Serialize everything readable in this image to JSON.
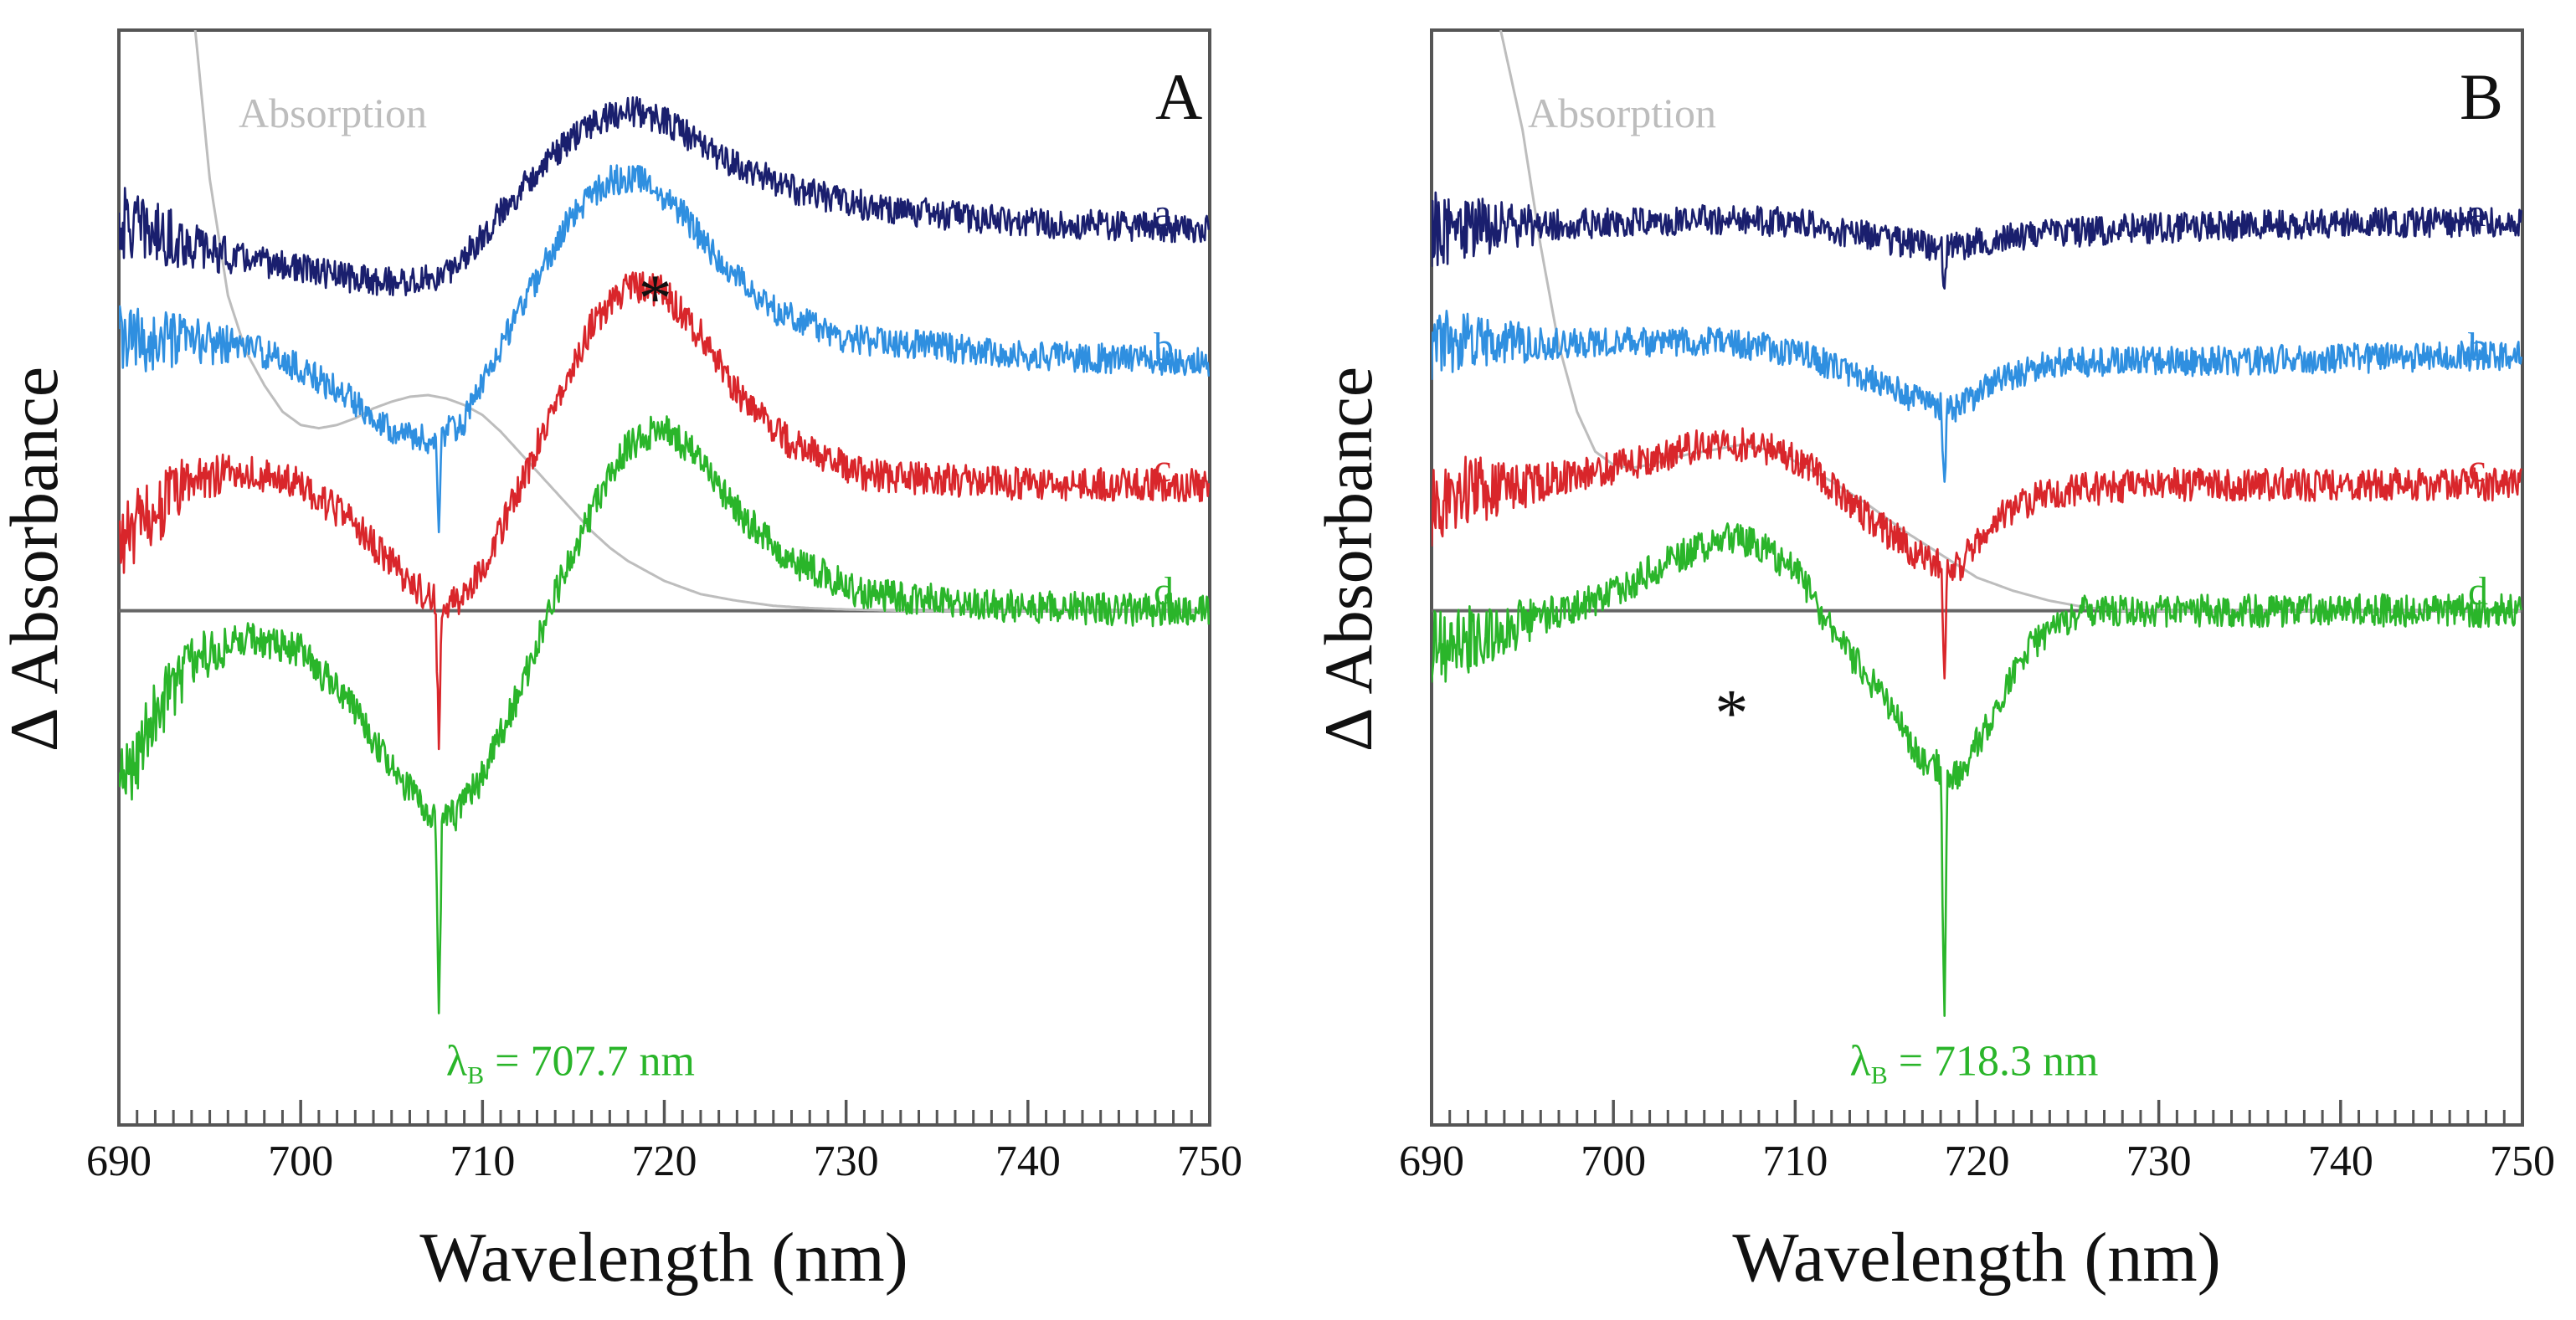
{
  "chart_data": [
    {
      "type": "line",
      "panel_label": "A",
      "xlabel": "Wavelength (nm)",
      "ylabel": "Δ Absorbance",
      "xlim": [
        690,
        750
      ],
      "ylim": [
        -1.55,
        1.75
      ],
      "x_ticks": [
        690,
        700,
        710,
        720,
        730,
        740,
        750
      ],
      "tick_labels": [
        "690",
        "700",
        "710",
        "720",
        "730",
        "740",
        "750"
      ],
      "baseline_y": 0,
      "absorption": {
        "label": "Absorption",
        "color": "#bdbdbd",
        "points": [
          [
            694.2,
            1.75
          ],
          [
            695.0,
            1.3
          ],
          [
            696.0,
            0.95
          ],
          [
            697.0,
            0.78
          ],
          [
            698.0,
            0.68
          ],
          [
            699.0,
            0.6
          ],
          [
            700.0,
            0.56
          ],
          [
            701.0,
            0.55
          ],
          [
            702.0,
            0.56
          ],
          [
            703.0,
            0.58
          ],
          [
            704.0,
            0.61
          ],
          [
            705.0,
            0.63
          ],
          [
            706.0,
            0.645
          ],
          [
            707.0,
            0.65
          ],
          [
            708.0,
            0.64
          ],
          [
            709.0,
            0.62
          ],
          [
            710.0,
            0.59
          ],
          [
            711.0,
            0.54
          ],
          [
            712.0,
            0.48
          ],
          [
            713.0,
            0.42
          ],
          [
            714.0,
            0.36
          ],
          [
            715.0,
            0.3
          ],
          [
            716.0,
            0.24
          ],
          [
            717.0,
            0.19
          ],
          [
            718.0,
            0.15
          ],
          [
            719.0,
            0.12
          ],
          [
            720.0,
            0.09
          ],
          [
            721.0,
            0.07
          ],
          [
            722.0,
            0.05
          ],
          [
            724.0,
            0.03
          ],
          [
            726.0,
            0.015
          ],
          [
            728.0,
            0.008
          ],
          [
            730.0,
            0.004
          ],
          [
            733.0,
            0.0
          ]
        ]
      },
      "series": [
        {
          "name": "a",
          "color": "#1a1f6e",
          "offset": 1.15,
          "noise": 0.045,
          "line": [
            [
              690,
              0.02
            ],
            [
              696,
              -0.08
            ],
            [
              700,
              -0.12
            ],
            [
              703,
              -0.15
            ],
            [
              706,
              -0.16
            ],
            [
              708,
              -0.14
            ],
            [
              710,
              -0.02
            ],
            [
              713,
              0.18
            ],
            [
              716,
              0.32
            ],
            [
              718,
              0.36
            ],
            [
              720,
              0.33
            ],
            [
              723,
              0.22
            ],
            [
              727,
              0.12
            ],
            [
              732,
              0.06
            ],
            [
              740,
              0.02
            ],
            [
              750,
              0.0
            ]
          ],
          "spikes": []
        },
        {
          "name": "b",
          "color": "#2f8fe0",
          "offset": 0.75,
          "noise": 0.045,
          "line": [
            [
              690,
              0.06
            ],
            [
              694,
              0.06
            ],
            [
              697,
              0.05
            ],
            [
              700,
              -0.02
            ],
            [
              703,
              -0.12
            ],
            [
              705,
              -0.2
            ],
            [
              707,
              -0.24
            ],
            [
              709,
              -0.18
            ],
            [
              711,
              0.05
            ],
            [
              713,
              0.25
            ],
            [
              715,
              0.45
            ],
            [
              717,
              0.55
            ],
            [
              719,
              0.55
            ],
            [
              721,
              0.45
            ],
            [
              723,
              0.3
            ],
            [
              726,
              0.16
            ],
            [
              730,
              0.07
            ],
            [
              740,
              0.02
            ],
            [
              750,
              0.0
            ]
          ],
          "spikes": [
            [
              707.6,
              -0.28
            ]
          ]
        },
        {
          "name": "c",
          "color": "#d9262b",
          "offset": 0.38,
          "noise": 0.05,
          "line": [
            [
              690,
              -0.18
            ],
            [
              692,
              -0.08
            ],
            [
              694,
              0.02
            ],
            [
              697,
              0.04
            ],
            [
              700,
              0.0
            ],
            [
              703,
              -0.12
            ],
            [
              705,
              -0.24
            ],
            [
              707,
              -0.34
            ],
            [
              708.5,
              -0.36
            ],
            [
              710,
              -0.25
            ],
            [
              712,
              -0.02
            ],
            [
              714,
              0.25
            ],
            [
              716,
              0.48
            ],
            [
              718,
              0.6
            ],
            [
              720,
              0.58
            ],
            [
              722,
              0.45
            ],
            [
              724,
              0.28
            ],
            [
              727,
              0.12
            ],
            [
              731,
              0.03
            ],
            [
              740,
              0.0
            ],
            [
              750,
              0.0
            ]
          ],
          "spikes": [
            [
              707.6,
              -0.45
            ]
          ]
        },
        {
          "name": "d",
          "color": "#2ab52a",
          "offset": 0.0,
          "noise": 0.05,
          "line": [
            [
              690,
              -0.55
            ],
            [
              692,
              -0.3
            ],
            [
              694,
              -0.15
            ],
            [
              697,
              -0.08
            ],
            [
              700,
              -0.12
            ],
            [
              703,
              -0.3
            ],
            [
              705,
              -0.48
            ],
            [
              707,
              -0.6
            ],
            [
              708.5,
              -0.62
            ],
            [
              710,
              -0.5
            ],
            [
              712,
              -0.25
            ],
            [
              714,
              0.05
            ],
            [
              716,
              0.3
            ],
            [
              718,
              0.5
            ],
            [
              720,
              0.56
            ],
            [
              722,
              0.45
            ],
            [
              724,
              0.3
            ],
            [
              727,
              0.15
            ],
            [
              731,
              0.05
            ],
            [
              740,
              0.01
            ],
            [
              750,
              0.0
            ]
          ],
          "spikes": [
            [
              707.6,
              -0.62
            ]
          ]
        }
      ],
      "annotations": {
        "star": {
          "text": "*",
          "x": 719.5,
          "y": 0.95
        },
        "lambda": {
          "symbol": "λ",
          "sub": "B",
          "text": " = 707.7 nm",
          "x": 708.0,
          "y": -1.4,
          "color": "#2ab52a"
        }
      }
    },
    {
      "type": "line",
      "panel_label": "B",
      "xlabel": "Wavelength (nm)",
      "ylabel": "Δ Absorbance",
      "xlim": [
        690,
        750
      ],
      "ylim": [
        -1.55,
        1.75
      ],
      "x_ticks": [
        690,
        700,
        710,
        720,
        730,
        740,
        750
      ],
      "tick_labels": [
        "690",
        "700",
        "710",
        "720",
        "730",
        "740",
        "750"
      ],
      "baseline_y": 0,
      "absorption": {
        "label": "Absorption",
        "color": "#bdbdbd",
        "points": [
          [
            693.8,
            1.75
          ],
          [
            695.0,
            1.45
          ],
          [
            696.0,
            1.1
          ],
          [
            697.0,
            0.8
          ],
          [
            698.0,
            0.6
          ],
          [
            699.0,
            0.48
          ],
          [
            700.0,
            0.44
          ],
          [
            701.0,
            0.43
          ],
          [
            702.0,
            0.44
          ],
          [
            704.0,
            0.47
          ],
          [
            706.0,
            0.49
          ],
          [
            707.0,
            0.5
          ],
          [
            708.0,
            0.49
          ],
          [
            709.0,
            0.48
          ],
          [
            710.0,
            0.45
          ],
          [
            712.0,
            0.39
          ],
          [
            714.0,
            0.32
          ],
          [
            716.0,
            0.24
          ],
          [
            718.0,
            0.17
          ],
          [
            720.0,
            0.1
          ],
          [
            722.0,
            0.06
          ],
          [
            724.0,
            0.03
          ],
          [
            726.0,
            0.01
          ],
          [
            728.0,
            0.0
          ]
        ]
      },
      "series": [
        {
          "name": "a",
          "color": "#1a1f6e",
          "offset": 1.15,
          "noise": 0.045,
          "line": [
            [
              690,
              0.0
            ],
            [
              700,
              0.02
            ],
            [
              705,
              0.03
            ],
            [
              710,
              0.02
            ],
            [
              714,
              -0.02
            ],
            [
              717,
              -0.05
            ],
            [
              719,
              -0.05
            ],
            [
              722,
              -0.02
            ],
            [
              728,
              0.0
            ],
            [
              740,
              0.02
            ],
            [
              750,
              0.02
            ]
          ],
          "spikes": [
            [
              718.2,
              -0.1
            ]
          ]
        },
        {
          "name": "b",
          "color": "#2f8fe0",
          "offset": 0.75,
          "noise": 0.045,
          "line": [
            [
              690,
              0.05
            ],
            [
              700,
              0.06
            ],
            [
              706,
              0.06
            ],
            [
              710,
              0.03
            ],
            [
              714,
              -0.05
            ],
            [
              717,
              -0.12
            ],
            [
              719,
              -0.14
            ],
            [
              721,
              -0.06
            ],
            [
              724,
              0.0
            ],
            [
              730,
              0.0
            ],
            [
              750,
              0.02
            ]
          ],
          "spikes": [
            [
              718.2,
              -0.28
            ]
          ]
        },
        {
          "name": "c",
          "color": "#d9262b",
          "offset": 0.38,
          "noise": 0.05,
          "line": [
            [
              690,
              -0.08
            ],
            [
              692,
              -0.02
            ],
            [
              695,
              0.0
            ],
            [
              700,
              0.05
            ],
            [
              705,
              0.12
            ],
            [
              708,
              0.12
            ],
            [
              711,
              0.05
            ],
            [
              714,
              -0.1
            ],
            [
              717,
              -0.22
            ],
            [
              719,
              -0.25
            ],
            [
              721,
              -0.1
            ],
            [
              724,
              -0.02
            ],
            [
              730,
              0.0
            ],
            [
              750,
              0.0
            ]
          ],
          "spikes": [
            [
              718.2,
              -0.38
            ]
          ]
        },
        {
          "name": "d",
          "color": "#2ab52a",
          "offset": 0.0,
          "noise": 0.05,
          "line": [
            [
              690,
              -0.12
            ],
            [
              693,
              -0.08
            ],
            [
              696,
              -0.02
            ],
            [
              700,
              0.05
            ],
            [
              703,
              0.15
            ],
            [
              706,
              0.22
            ],
            [
              708,
              0.2
            ],
            [
              710,
              0.12
            ],
            [
              712,
              -0.05
            ],
            [
              715,
              -0.28
            ],
            [
              717,
              -0.45
            ],
            [
              719,
              -0.5
            ],
            [
              721,
              -0.3
            ],
            [
              723,
              -0.1
            ],
            [
              726,
              0.0
            ],
            [
              730,
              0.0
            ],
            [
              750,
              0.0
            ]
          ],
          "spikes": [
            [
              718.2,
              -0.78
            ]
          ]
        }
      ],
      "annotations": {
        "star": {
          "text": "*",
          "x": 706.5,
          "y": -0.3
        },
        "lambda": {
          "symbol": "λ",
          "sub": "B",
          "text": " = 718.3 nm",
          "x": 713.0,
          "y": -1.4,
          "color": "#2ab52a"
        }
      }
    }
  ]
}
